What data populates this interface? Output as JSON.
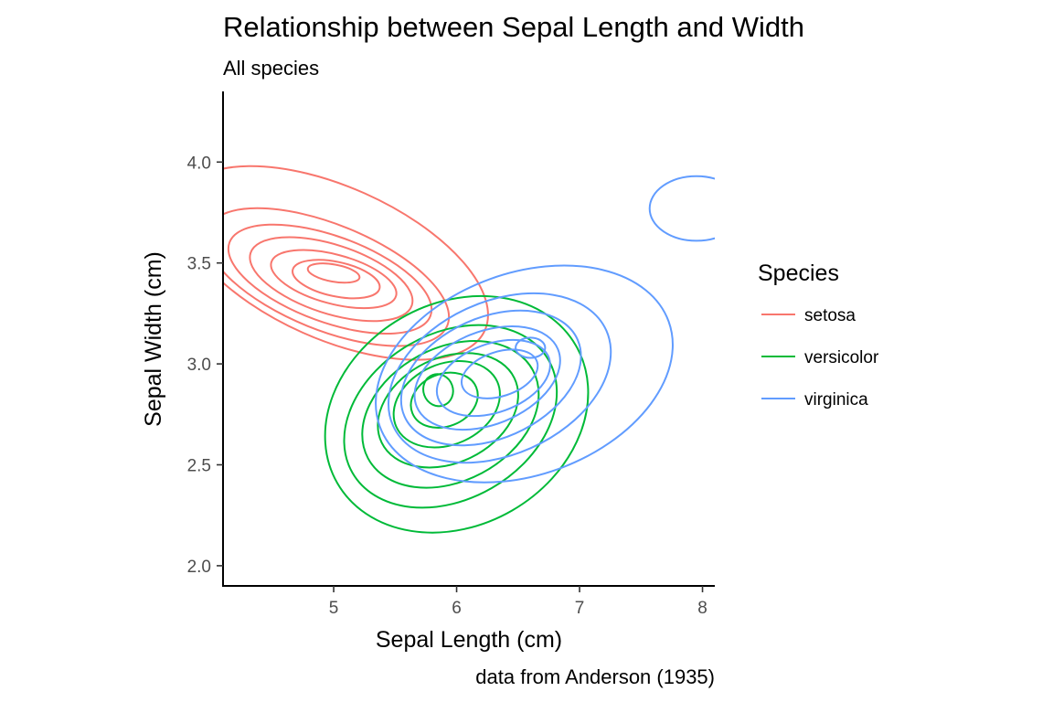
{
  "chart_data": {
    "type": "contour",
    "title": "Relationship between Sepal Length and Width",
    "subtitle": "All species",
    "xlabel": "Sepal Length (cm)",
    "ylabel": "Sepal Width (cm)",
    "caption": "data from Anderson (1935)",
    "xlim": [
      4.1,
      8.1
    ],
    "ylim": [
      1.9,
      4.35
    ],
    "x_ticks": [
      5,
      6,
      7,
      8
    ],
    "y_ticks": [
      2.0,
      2.5,
      3.0,
      3.5,
      4.0
    ],
    "x_tick_labels": [
      "5",
      "6",
      "7",
      "8"
    ],
    "y_tick_labels": [
      "2.0",
      "2.5",
      "3.0",
      "3.5",
      "4.0"
    ],
    "grid": false,
    "legend": {
      "title": "Species",
      "position": "right"
    },
    "series": [
      {
        "name": "setosa",
        "color": "#F8766D",
        "levels": [
          {
            "cx": 5.0,
            "cy": 3.45,
            "rx": 0.07,
            "ry": 0.13,
            "rot": 80
          },
          {
            "cx": 5.02,
            "cy": 3.42,
            "rx": 0.14,
            "ry": 0.22,
            "rot": 78
          },
          {
            "cx": 5.0,
            "cy": 3.42,
            "rx": 0.2,
            "ry": 0.32,
            "rot": 75
          },
          {
            "cx": 4.98,
            "cy": 3.42,
            "rx": 0.28,
            "ry": 0.42,
            "rot": 72
          },
          {
            "cx": 4.97,
            "cy": 3.42,
            "rx": 0.35,
            "ry": 0.53,
            "rot": 70
          },
          {
            "cx": 4.95,
            "cy": 3.43,
            "rx": 0.43,
            "ry": 0.64,
            "rot": 68
          },
          {
            "cx": 5.0,
            "cy": 3.5,
            "rx": 0.62,
            "ry": 0.82,
            "rot": 66
          }
        ]
      },
      {
        "name": "versicolor",
        "color": "#00BA38",
        "levels": [
          {
            "cx": 5.85,
            "cy": 2.87,
            "rx": 0.12,
            "ry": 0.08,
            "rot": 20
          },
          {
            "cx": 5.9,
            "cy": 2.82,
            "rx": 0.28,
            "ry": 0.13,
            "rot": 22
          },
          {
            "cx": 5.92,
            "cy": 2.8,
            "rx": 0.45,
            "ry": 0.2,
            "rot": 24
          },
          {
            "cx": 5.93,
            "cy": 2.77,
            "rx": 0.6,
            "ry": 0.26,
            "rot": 26
          },
          {
            "cx": 5.95,
            "cy": 2.75,
            "rx": 0.76,
            "ry": 0.33,
            "rot": 28
          },
          {
            "cx": 5.95,
            "cy": 2.74,
            "rx": 0.92,
            "ry": 0.41,
            "rot": 30
          },
          {
            "cx": 6.0,
            "cy": 2.75,
            "rx": 1.12,
            "ry": 0.55,
            "rot": 30
          }
        ]
      },
      {
        "name": "virginica",
        "color": "#619CFF",
        "levels": [
          {
            "cx": 6.6,
            "cy": 3.08,
            "rx": 0.12,
            "ry": 0.05,
            "rot": 0
          },
          {
            "cx": 6.35,
            "cy": 2.95,
            "rx": 0.32,
            "ry": 0.11,
            "rot": 18
          },
          {
            "cx": 6.3,
            "cy": 2.93,
            "rx": 0.48,
            "ry": 0.17,
            "rot": 20
          },
          {
            "cx": 6.25,
            "cy": 2.93,
            "rx": 0.62,
            "ry": 0.23,
            "rot": 22
          },
          {
            "cx": 6.28,
            "cy": 2.93,
            "rx": 0.77,
            "ry": 0.3,
            "rot": 24
          },
          {
            "cx": 6.35,
            "cy": 2.93,
            "rx": 0.95,
            "ry": 0.38,
            "rot": 24
          },
          {
            "cx": 6.55,
            "cy": 2.95,
            "rx": 1.25,
            "ry": 0.5,
            "rot": 20
          },
          {
            "cx": 7.95,
            "cy": 3.77,
            "rx": 0.38,
            "ry": 0.16,
            "rot": 0
          }
        ]
      }
    ]
  }
}
